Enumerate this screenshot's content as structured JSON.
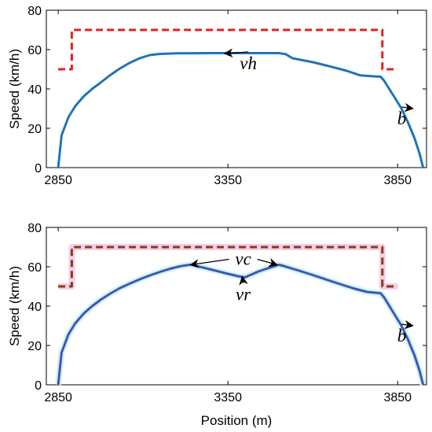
{
  "chart_data": [
    {
      "type": "line",
      "ylabel": "Speed (km/h)",
      "xlabel": "",
      "xlim": [
        2815,
        3935
      ],
      "ylim": [
        0,
        80
      ],
      "xticks": [
        2850,
        3350,
        3850
      ],
      "yticks": [
        0,
        20,
        40,
        60,
        80
      ],
      "grid": false,
      "series": [
        {
          "name": "speed-limit",
          "style": "dashed",
          "color": "#e32020",
          "x": [
            2850,
            2890,
            2890,
            3805,
            3805,
            3850
          ],
          "y": [
            50,
            50,
            70,
            70,
            50,
            50
          ]
        },
        {
          "name": "vh",
          "style": "solid",
          "color": "#1f74b8",
          "x": [
            2850,
            2860,
            2880,
            2900,
            2925,
            2950,
            2975,
            3000,
            3030,
            3060,
            3090,
            3120,
            3150,
            3200,
            3300,
            3400,
            3500,
            3520,
            3540,
            3600,
            3650,
            3700,
            3740,
            3780,
            3800,
            3810,
            3825,
            3840,
            3860,
            3880,
            3900,
            3915,
            3925
          ],
          "y": [
            0,
            16.4,
            25.6,
            31.2,
            36.2,
            40.0,
            43.2,
            46.6,
            50.2,
            53.2,
            55.6,
            57.2,
            57.8,
            58.1,
            58.2,
            58.2,
            58.2,
            57.7,
            55.6,
            53.6,
            51.5,
            49.2,
            46.9,
            46.4,
            46.2,
            44.2,
            40.0,
            36.0,
            30.4,
            23.2,
            14.8,
            6.8,
            0
          ]
        }
      ],
      "annotations": [
        {
          "text": "vh",
          "x": 3410,
          "y": 50,
          "target_x": 3340,
          "target_y": 58
        },
        {
          "text": "b",
          "x": 3862,
          "y": 22,
          "target_x": 3895,
          "target_y": 30
        }
      ]
    },
    {
      "type": "line",
      "ylabel": "Speed (km/h)",
      "xlabel": "Position (m)",
      "xlim": [
        2815,
        3935
      ],
      "ylim": [
        0,
        80
      ],
      "xticks": [
        2850,
        3350,
        3850
      ],
      "yticks": [
        0,
        20,
        40,
        60,
        80
      ],
      "grid": false,
      "series": [
        {
          "name": "speed-limit",
          "style": "dashed",
          "color": "#8b3a1a",
          "x": [
            2850,
            2890,
            2890,
            3805,
            3805,
            3850
          ],
          "y": [
            50,
            50,
            70,
            70,
            50,
            50
          ]
        },
        {
          "name": "vc-vr",
          "style": "solid",
          "color": "#3e57b4",
          "x": [
            2850,
            2860,
            2880,
            2900,
            2925,
            2950,
            2975,
            3000,
            3030,
            3060,
            3090,
            3120,
            3150,
            3180,
            3210,
            3240,
            3270,
            3300,
            3330,
            3360,
            3380,
            3400,
            3420,
            3440,
            3460,
            3480,
            3500,
            3510,
            3520,
            3560,
            3600,
            3640,
            3680,
            3720,
            3760,
            3790,
            3800,
            3810,
            3825,
            3840,
            3860,
            3880,
            3900,
            3915,
            3925
          ],
          "y": [
            0,
            16.4,
            25.6,
            31.2,
            36.2,
            40.0,
            43.2,
            46.0,
            49.0,
            51.4,
            53.6,
            55.6,
            57.4,
            59.0,
            60.3,
            61.1,
            59.9,
            58.6,
            57.3,
            56.0,
            55.2,
            54.6,
            56.1,
            57.6,
            58.8,
            59.9,
            61.0,
            60.6,
            60.1,
            58.0,
            55.8,
            53.5,
            51.2,
            49.0,
            47.2,
            46.7,
            46.5,
            44.4,
            40.2,
            36.0,
            30.4,
            23.2,
            14.8,
            6.8,
            0
          ]
        }
      ],
      "annotations": [
        {
          "text": "vc",
          "x": 3395,
          "y": 61,
          "targets": [
            [
              3240,
              61
            ],
            [
              3495,
              61
            ]
          ]
        },
        {
          "text": "vr",
          "x": 3395,
          "y": 43,
          "target_x": 3392,
          "target_y": 55
        },
        {
          "text": "b",
          "x": 3862,
          "y": 22,
          "target_x": 3895,
          "target_y": 30
        }
      ]
    }
  ]
}
